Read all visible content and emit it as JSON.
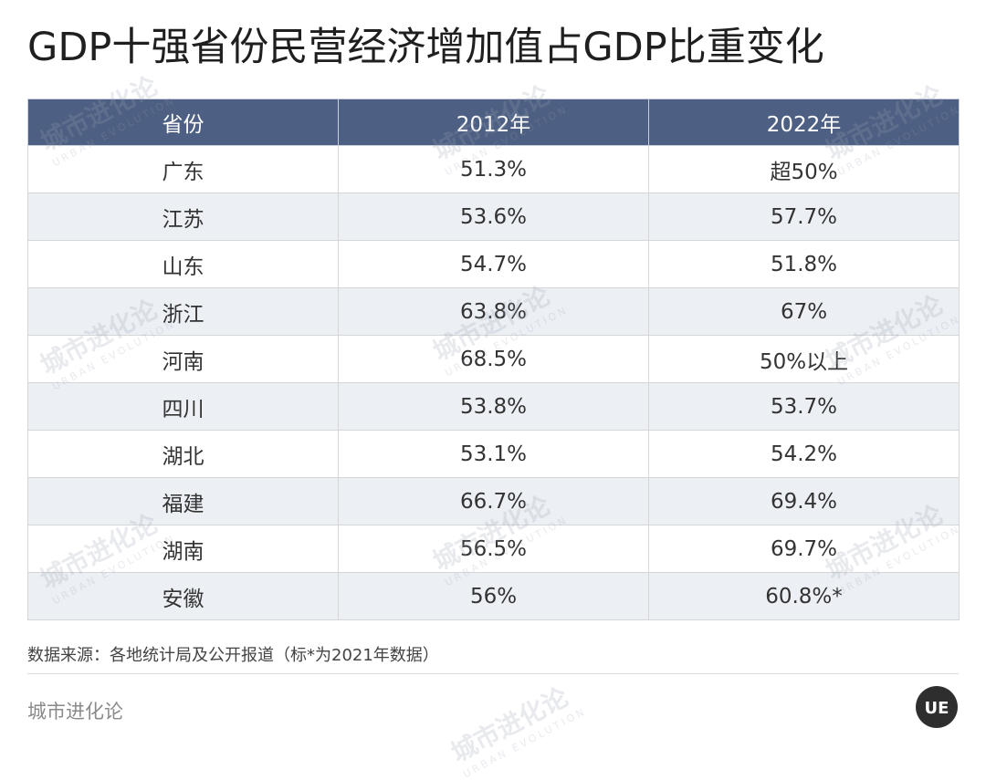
{
  "title": "GDP十强省份民营经济增加值占GDP比重变化",
  "table": {
    "headers": [
      "省份",
      "2012年",
      "2022年"
    ],
    "rows": [
      [
        "广东",
        "51.3%",
        "超50%"
      ],
      [
        "江苏",
        "53.6%",
        "57.7%"
      ],
      [
        "山东",
        "54.7%",
        "51.8%"
      ],
      [
        "浙江",
        "63.8%",
        "67%"
      ],
      [
        "河南",
        "68.5%",
        "50%以上"
      ],
      [
        "四川",
        "53.8%",
        "53.7%"
      ],
      [
        "湖北",
        "53.1%",
        "54.2%"
      ],
      [
        "福建",
        "66.7%",
        "69.4%"
      ],
      [
        "湖南",
        "56.5%",
        "69.7%"
      ],
      [
        "安徽",
        "56%",
        "60.8%*"
      ]
    ]
  },
  "source": "数据来源：各地统计局及公开报道（标*为2021年数据）",
  "brand": "城市进化论",
  "logo_text": "UE",
  "watermark": {
    "cn": "城市进化论",
    "en": "URBAN EVOLUTION"
  },
  "colors": {
    "header_bg": "#4d5f82",
    "stripe_bg": "#eceff4",
    "title": "#1f1f1f"
  }
}
